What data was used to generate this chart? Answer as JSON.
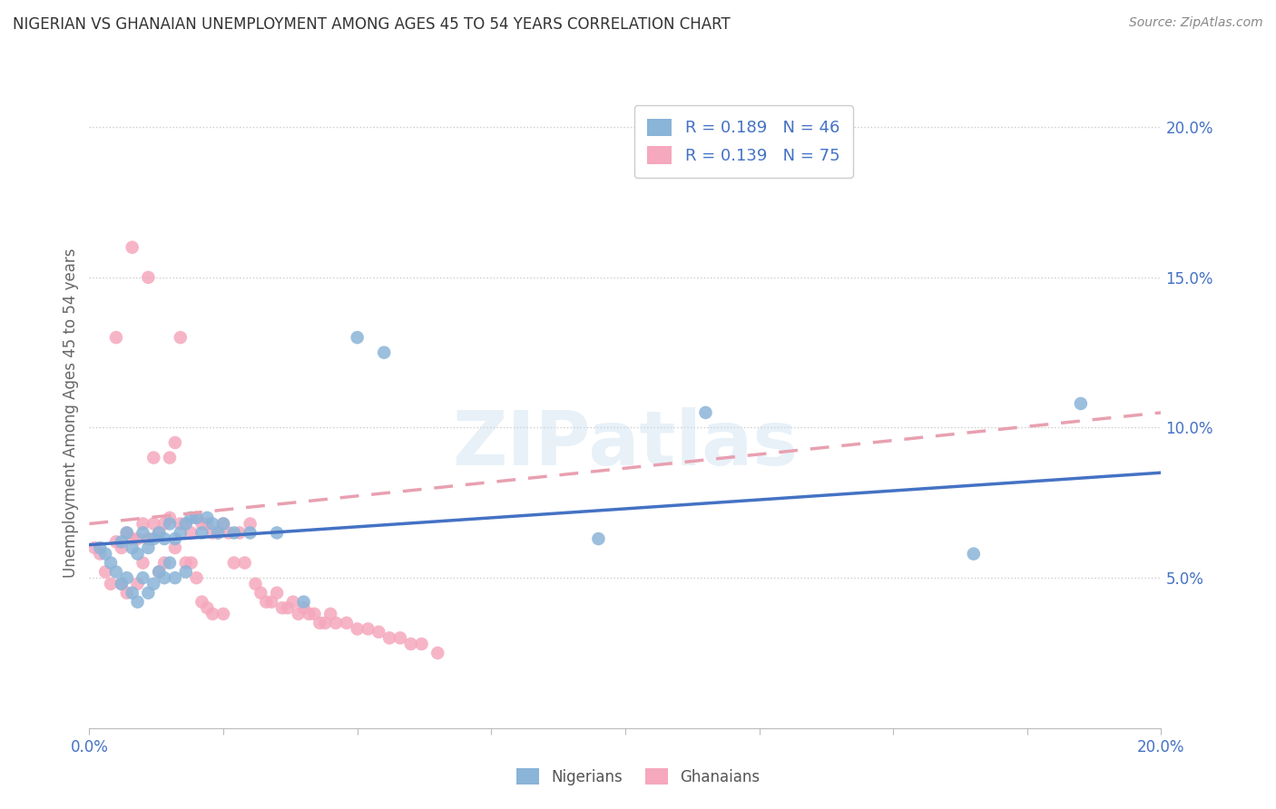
{
  "title": "NIGERIAN VS GHANAIAN UNEMPLOYMENT AMONG AGES 45 TO 54 YEARS CORRELATION CHART",
  "source": "Source: ZipAtlas.com",
  "ylabel": "Unemployment Among Ages 45 to 54 years",
  "xlim": [
    0.0,
    0.2
  ],
  "ylim": [
    0.0,
    0.21
  ],
  "yticks": [
    0.05,
    0.1,
    0.15,
    0.2
  ],
  "ytick_labels": [
    "5.0%",
    "10.0%",
    "15.0%",
    "20.0%"
  ],
  "xticks": [
    0.0,
    0.025,
    0.05,
    0.075,
    0.1,
    0.125,
    0.15,
    0.175,
    0.2
  ],
  "blue_color": "#8ab4d8",
  "pink_color": "#f5a8be",
  "blue_line_color": "#4472c4",
  "pink_line_color": "#e8a0b0",
  "watermark": "ZIPatlas",
  "nigerian_x": [
    0.002,
    0.003,
    0.004,
    0.005,
    0.006,
    0.006,
    0.007,
    0.007,
    0.008,
    0.008,
    0.009,
    0.009,
    0.01,
    0.01,
    0.011,
    0.011,
    0.012,
    0.012,
    0.013,
    0.013,
    0.014,
    0.014,
    0.015,
    0.015,
    0.016,
    0.016,
    0.017,
    0.018,
    0.018,
    0.019,
    0.02,
    0.021,
    0.022,
    0.023,
    0.024,
    0.025,
    0.027,
    0.03,
    0.035,
    0.04,
    0.05,
    0.055,
    0.095,
    0.115,
    0.165,
    0.185
  ],
  "nigerian_y": [
    0.06,
    0.058,
    0.055,
    0.052,
    0.062,
    0.048,
    0.065,
    0.05,
    0.06,
    0.045,
    0.058,
    0.042,
    0.065,
    0.05,
    0.06,
    0.045,
    0.063,
    0.048,
    0.065,
    0.052,
    0.063,
    0.05,
    0.068,
    0.055,
    0.063,
    0.05,
    0.065,
    0.068,
    0.052,
    0.07,
    0.07,
    0.065,
    0.07,
    0.068,
    0.065,
    0.068,
    0.065,
    0.065,
    0.065,
    0.042,
    0.13,
    0.125,
    0.063,
    0.105,
    0.058,
    0.108
  ],
  "ghanaian_x": [
    0.001,
    0.002,
    0.003,
    0.004,
    0.005,
    0.005,
    0.006,
    0.006,
    0.007,
    0.007,
    0.008,
    0.008,
    0.009,
    0.009,
    0.01,
    0.01,
    0.011,
    0.011,
    0.012,
    0.012,
    0.013,
    0.013,
    0.014,
    0.014,
    0.015,
    0.015,
    0.016,
    0.016,
    0.017,
    0.017,
    0.018,
    0.018,
    0.019,
    0.019,
    0.02,
    0.02,
    0.021,
    0.021,
    0.022,
    0.022,
    0.023,
    0.023,
    0.024,
    0.025,
    0.025,
    0.026,
    0.027,
    0.028,
    0.029,
    0.03,
    0.031,
    0.032,
    0.033,
    0.034,
    0.035,
    0.036,
    0.037,
    0.038,
    0.039,
    0.04,
    0.041,
    0.042,
    0.043,
    0.044,
    0.045,
    0.046,
    0.048,
    0.05,
    0.052,
    0.054,
    0.056,
    0.058,
    0.06,
    0.062,
    0.065
  ],
  "ghanaian_y": [
    0.06,
    0.058,
    0.052,
    0.048,
    0.062,
    0.13,
    0.06,
    0.048,
    0.065,
    0.045,
    0.063,
    0.16,
    0.063,
    0.048,
    0.068,
    0.055,
    0.063,
    0.15,
    0.068,
    0.09,
    0.065,
    0.052,
    0.068,
    0.055,
    0.07,
    0.09,
    0.095,
    0.06,
    0.068,
    0.13,
    0.068,
    0.055,
    0.065,
    0.055,
    0.07,
    0.05,
    0.068,
    0.042,
    0.068,
    0.04,
    0.065,
    0.038,
    0.065,
    0.068,
    0.038,
    0.065,
    0.055,
    0.065,
    0.055,
    0.068,
    0.048,
    0.045,
    0.042,
    0.042,
    0.045,
    0.04,
    0.04,
    0.042,
    0.038,
    0.04,
    0.038,
    0.038,
    0.035,
    0.035,
    0.038,
    0.035,
    0.035,
    0.033,
    0.033,
    0.032,
    0.03,
    0.03,
    0.028,
    0.028,
    0.025
  ],
  "nig_trend_x": [
    0.0,
    0.2
  ],
  "nig_trend_y": [
    0.061,
    0.085
  ],
  "gha_trend_x": [
    0.0,
    0.2
  ],
  "gha_trend_y": [
    0.068,
    0.105
  ]
}
